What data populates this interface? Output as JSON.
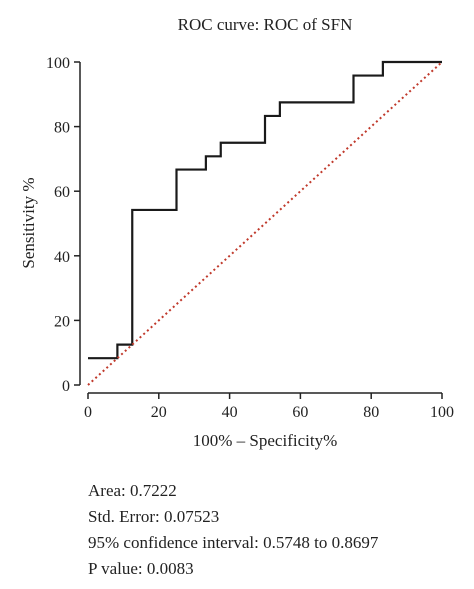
{
  "chart_data": {
    "type": "line",
    "title": "ROC curve: ROC of SFN",
    "xlabel": "100% – Specificity%",
    "ylabel": "Sensitivity %",
    "xlim": [
      0,
      100
    ],
    "ylim": [
      0,
      100
    ],
    "xticks": [
      0,
      20,
      40,
      60,
      80,
      100
    ],
    "yticks": [
      0,
      20,
      40,
      60,
      80,
      100
    ],
    "grid": false,
    "series": [
      {
        "style": "step",
        "color": "#1a1a1a",
        "points": [
          [
            0,
            8.3
          ],
          [
            8.3,
            8.3
          ],
          [
            8.3,
            12.5
          ],
          [
            12.5,
            12.5
          ],
          [
            12.5,
            54.2
          ],
          [
            25,
            54.2
          ],
          [
            25,
            66.7
          ],
          [
            33.3,
            66.7
          ],
          [
            33.3,
            70.8
          ],
          [
            37.5,
            70.8
          ],
          [
            37.5,
            75
          ],
          [
            50,
            75
          ],
          [
            50,
            83.3
          ],
          [
            54.2,
            83.3
          ],
          [
            54.2,
            87.5
          ],
          [
            75,
            87.5
          ],
          [
            75,
            95.8
          ],
          [
            83.3,
            95.8
          ],
          [
            83.3,
            100
          ],
          [
            100,
            100
          ]
        ]
      },
      {
        "style": "dotted",
        "color": "#c0392b",
        "points": [
          [
            0,
            0
          ],
          [
            100,
            100
          ]
        ]
      }
    ]
  },
  "stats": {
    "area": "Area: 0.7222",
    "std_error": "Std. Error: 0.07523",
    "ci": "95% confidence interval: 0.5748 to 0.8697",
    "p_value": "P value: 0.0083"
  }
}
